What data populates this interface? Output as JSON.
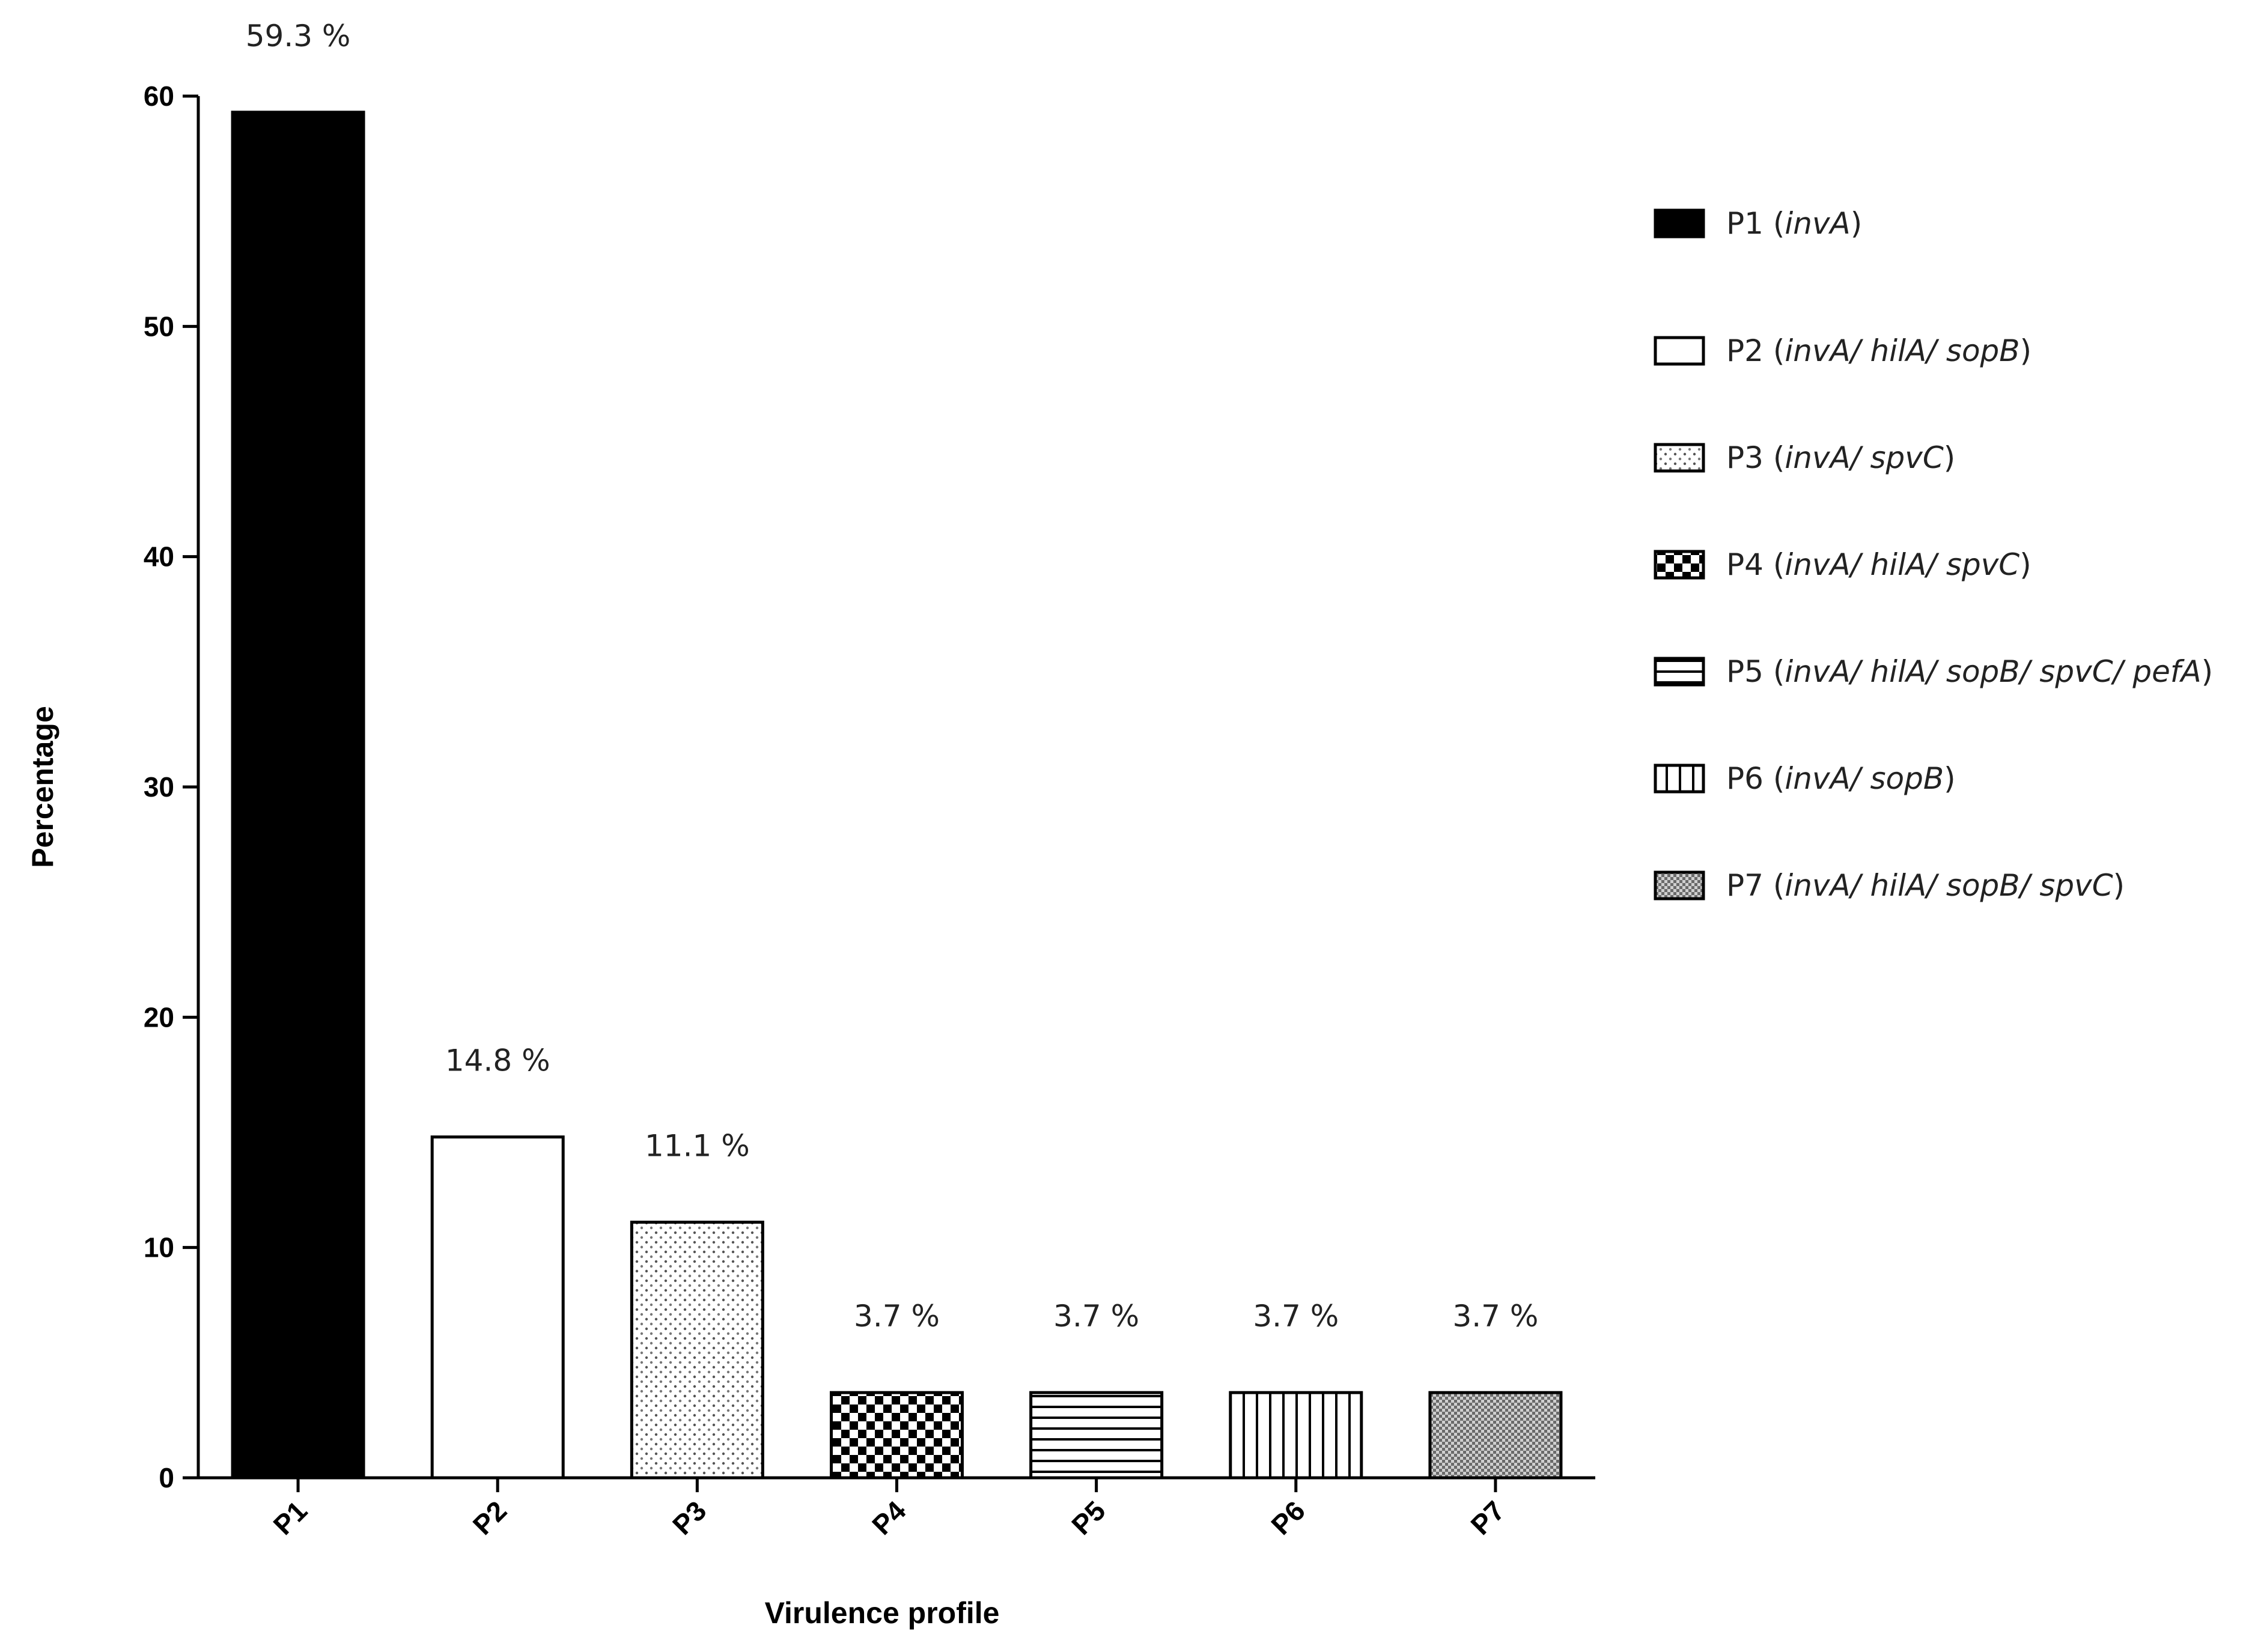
{
  "chart_data": {
    "type": "bar",
    "title": "",
    "xlabel": "Virulence profile",
    "ylabel": "Percentage",
    "ylim": [
      0,
      60
    ],
    "yticks": [
      0,
      10,
      20,
      30,
      40,
      50,
      60
    ],
    "categories": [
      "P1",
      "P2",
      "P3",
      "P4",
      "P5",
      "P6",
      "P7"
    ],
    "values": [
      59.3,
      14.8,
      11.1,
      3.7,
      3.7,
      3.7,
      3.7
    ],
    "data_labels": [
      "59.3 %",
      "14.8 %",
      "11.1 %",
      "3.7 %",
      "3.7 %",
      "3.7 %",
      "3.7 %"
    ],
    "fill_patterns": [
      "solid-black",
      "white",
      "fine-dots",
      "checker",
      "horizontal-lines",
      "vertical-lines",
      "dense-crosshatch"
    ],
    "legend_position": "right",
    "legend": [
      {
        "label": "P1",
        "genes": "invA"
      },
      {
        "label": "P2",
        "genes": "invA/ hilA/ sopB"
      },
      {
        "label": "P3",
        "genes": "invA/ spvC"
      },
      {
        "label": "P4",
        "genes": "invA/ hilA/ spvC"
      },
      {
        "label": "P5",
        "genes": "invA/ hilA/ sopB/ spvC/ pefA"
      },
      {
        "label": "P6",
        "genes": "invA/ sopB"
      },
      {
        "label": "P7",
        "genes": "invA/ hilA/ sopB/ spvC"
      }
    ]
  }
}
